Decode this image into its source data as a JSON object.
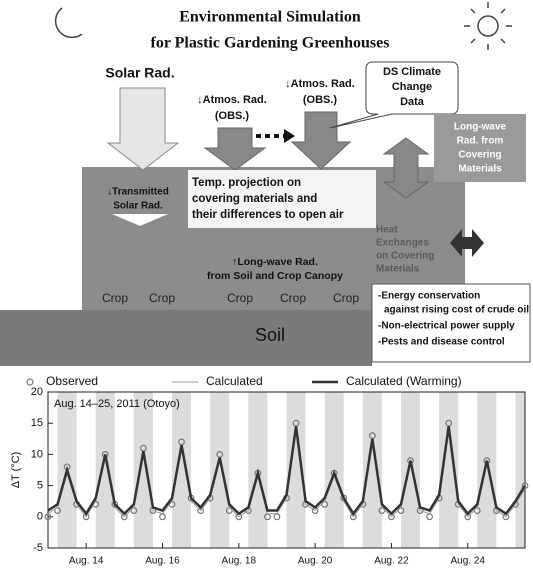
{
  "header": {
    "title": [
      "Environmental Simulation",
      "for Plastic Gardening Greenhouses"
    ]
  },
  "diagram": {
    "solar_rad": "Solar Rad.",
    "atmos_left": [
      "↓Atmos. Rad.",
      "(OBS.)"
    ],
    "atmos_right": [
      "↓Atmos. Rad.",
      "(OBS.)"
    ],
    "ds_data": [
      "DS Climate",
      "Change",
      "Data"
    ],
    "longwave_cover": [
      "Long-wave",
      "Rad. from",
      "Covering",
      "Materials"
    ],
    "transmitted": [
      "↓Transmitted",
      "Solar Rad."
    ],
    "temp_projection": [
      "Temp. projection on",
      "covering materials and",
      "their differences to open air"
    ],
    "heat_exchange": [
      "Heat",
      "Exchanges",
      "on Covering",
      "Materials"
    ],
    "longwave_soil": [
      "↑Long-wave Rad.",
      "from Soil and Crop Canopy"
    ],
    "crops": [
      "Crop",
      "Crop",
      "Crop",
      "Crop",
      "Crop"
    ],
    "soil": "Soil",
    "notes": [
      "-Energy conservation",
      "against rising cost of crude oil",
      "-Non-electrical power supply",
      "-Pests and disease control"
    ]
  },
  "chart_data": {
    "type": "line",
    "ylabel": "ΔT (°C)",
    "annotation": "Aug. 14–25, 2011 (Otoyo)",
    "xlim": [
      13,
      25.5
    ],
    "xticks": [
      {
        "value": 14,
        "label": "Aug. 14"
      },
      {
        "value": 16,
        "label": "Aug. 16"
      },
      {
        "value": 18,
        "label": "Aug. 18"
      },
      {
        "value": 20,
        "label": "Aug. 20"
      },
      {
        "value": 22,
        "label": "Aug. 22"
      },
      {
        "value": 24,
        "label": "Aug. 24"
      }
    ],
    "ylim": [
      -5,
      20
    ],
    "yticks": [
      -5,
      0,
      5,
      10,
      15,
      20
    ],
    "x": [
      13,
      13.25,
      13.5,
      13.75,
      14,
      14.25,
      14.5,
      14.75,
      15,
      15.25,
      15.5,
      15.75,
      16,
      16.25,
      16.5,
      16.75,
      17,
      17.25,
      17.5,
      17.75,
      18,
      18.25,
      18.5,
      18.75,
      19,
      19.25,
      19.5,
      19.75,
      20,
      20.25,
      20.5,
      20.75,
      21,
      21.25,
      21.5,
      21.75,
      22,
      22.25,
      22.5,
      22.75,
      23,
      23.25,
      23.5,
      23.75,
      24,
      24.25,
      24.5,
      24.75,
      25,
      25.25,
      25.5
    ],
    "series": [
      {
        "name": "Observed",
        "color": "#777777",
        "mode": "markers",
        "values": [
          0,
          1,
          8,
          2,
          0,
          2,
          10,
          2,
          0,
          1,
          11,
          1,
          0,
          2,
          12,
          3,
          1,
          3,
          10,
          1,
          0,
          1,
          7,
          0,
          0,
          3,
          15,
          2,
          1,
          2,
          7,
          3,
          0,
          2,
          13,
          1,
          0,
          1,
          9,
          1,
          0,
          3,
          15,
          2,
          0,
          1,
          9,
          1,
          0,
          2,
          5
        ]
      },
      {
        "name": "Calculated",
        "color": "#9a9a9a",
        "mode": "line",
        "linewidth": 1,
        "values": [
          0.5,
          1.5,
          7,
          2,
          0,
          2.5,
          9.5,
          1.5,
          0,
          1.5,
          10,
          1,
          0.5,
          2.5,
          11,
          2.5,
          1,
          3,
          9,
          1.5,
          0,
          1,
          6.5,
          0.5,
          0.5,
          3,
          14,
          2,
          1,
          2.5,
          6.5,
          2.5,
          0,
          2,
          12,
          1.5,
          0,
          1.5,
          8.5,
          1,
          0.5,
          3,
          14,
          2,
          0,
          1.5,
          8.5,
          1,
          0,
          2,
          4.5
        ]
      },
      {
        "name": "Calculated (Warming)",
        "color": "#333333",
        "mode": "line",
        "linewidth": 2.5,
        "values": [
          1,
          2,
          7.5,
          2.5,
          0.5,
          3,
          10,
          2,
          0.5,
          2,
          10.5,
          1.5,
          1,
          3,
          11.5,
          3,
          1.5,
          3.5,
          9.5,
          2,
          0.5,
          1.5,
          7,
          1,
          1,
          3.5,
          14.5,
          2.5,
          1.5,
          3,
          7,
          3,
          0.5,
          2.5,
          12.5,
          2,
          0.5,
          2,
          9,
          1.5,
          1,
          3.5,
          14.5,
          2.5,
          0.5,
          2,
          9,
          1.5,
          0.5,
          2.5,
          5
        ]
      }
    ]
  }
}
